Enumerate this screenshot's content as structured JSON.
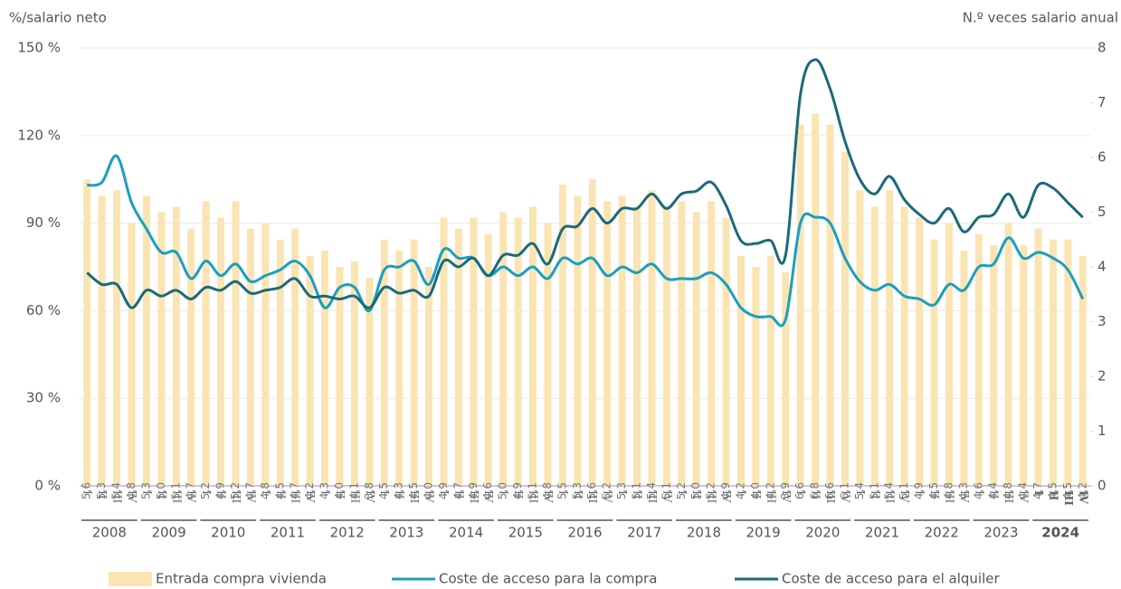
{
  "chart_data": {
    "type": "bar-line",
    "y_label": "%/salario neto",
    "y2_label": "N.º veces salario anual",
    "categories": [
      "I",
      "II",
      "III",
      "IV",
      "I",
      "II",
      "III",
      "IV",
      "I",
      "II",
      "III",
      "IV",
      "I",
      "II",
      "III",
      "IV",
      "I",
      "II",
      "III",
      "IV",
      "I",
      "II",
      "III",
      "IV",
      "I",
      "II",
      "III",
      "IV",
      "I",
      "II",
      "III",
      "IV",
      "I",
      "II",
      "III",
      "IV",
      "I",
      "II",
      "III",
      "IV",
      "I",
      "II",
      "III",
      "IV",
      "I",
      "II",
      "III",
      "IV",
      "I",
      "II",
      "III",
      "IV",
      "I",
      "II",
      "III",
      "IV",
      "I",
      "II",
      "III",
      "IV",
      "I",
      "II",
      "III",
      "IV",
      "I",
      "II",
      "III",
      "IV"
    ],
    "years": [
      "2008",
      "2009",
      "2010",
      "2011",
      "2012",
      "2013",
      "2014",
      "2015",
      "2016",
      "2017",
      "2018",
      "2019",
      "2020",
      "2021",
      "2022",
      "2023",
      "2024"
    ],
    "bold_year_index": 16,
    "ylim": [
      0,
      150
    ],
    "yticks": [
      {
        "value": 0,
        "label": "0 %"
      },
      {
        "value": 30,
        "label": "30 %"
      },
      {
        "value": 60,
        "label": "60 %"
      },
      {
        "value": 90,
        "label": "90 %"
      },
      {
        "value": 120,
        "label": "120 %"
      },
      {
        "value": 150,
        "label": "150 %"
      }
    ],
    "y2lim": [
      0,
      8
    ],
    "y2ticks": [
      0,
      1,
      2,
      3,
      4,
      5,
      6,
      7,
      8
    ],
    "grid": true,
    "series": [
      {
        "name": "Entrada compra vivienda",
        "type": "bar",
        "axis": "y2",
        "color": "#fbe4b4",
        "values": [
          5.6,
          5.3,
          5.4,
          4.8,
          5.3,
          5.0,
          5.1,
          4.7,
          5.2,
          4.9,
          5.2,
          4.7,
          4.8,
          4.5,
          4.7,
          4.2,
          4.3,
          4.0,
          4.1,
          3.8,
          4.5,
          4.3,
          4.5,
          4.0,
          4.9,
          4.7,
          4.9,
          4.6,
          5.0,
          4.9,
          5.1,
          4.8,
          5.5,
          5.3,
          5.6,
          5.2,
          5.3,
          5.1,
          5.4,
          5.1,
          5.2,
          5.0,
          5.2,
          4.9,
          4.2,
          4.0,
          4.2,
          3.9,
          6.6,
          6.8,
          6.6,
          6.1,
          5.4,
          5.1,
          5.4,
          5.1,
          4.9,
          4.5,
          4.8,
          4.3,
          4.6,
          4.4,
          4.8,
          4.4,
          4.7,
          4.5,
          4.5,
          4.2
        ],
        "value_labels": [
          "5,6",
          "5,3",
          "5,4",
          "4,8",
          "5,3",
          "5,0",
          "5,1",
          "4,7",
          "5,2",
          "4,9",
          "5,2",
          "4,7",
          "4,8",
          "4,5",
          "4,7",
          "4,2",
          "4,3",
          "4,0",
          "4,1",
          "3,8",
          "4,5",
          "4,3",
          "4,5",
          "4,0",
          "4,9",
          "4,7",
          "4,9",
          "4,6",
          "5,0",
          "4,9",
          "5,1",
          "4,8",
          "5,5",
          "5,3",
          "5,6",
          "5,2",
          "5,3",
          "5,1",
          "5,4",
          "5,1",
          "5,2",
          "5,0",
          "5,2",
          "4,9",
          "4,2",
          "4,0",
          "4,2",
          "3,9",
          "6,6",
          "6,8",
          "6,6",
          "6,1",
          "5,4",
          "5,1",
          "5,4",
          "5,1",
          "4,9",
          "4,5",
          "4,8",
          "4,3",
          "4,6",
          "4,4",
          "4,8",
          "4,4",
          "4,7",
          "4,5",
          "4,5",
          "4,2"
        ]
      },
      {
        "name": "Coste de acceso para la compra",
        "type": "line",
        "color": "#1a9fc0",
        "values": [
          103,
          104,
          113,
          97,
          88,
          80,
          80,
          71,
          77,
          72,
          76,
          70,
          72,
          74,
          77,
          72,
          61,
          68,
          68,
          60,
          74,
          75,
          77,
          69,
          81,
          78,
          78,
          72,
          75,
          72,
          75,
          71,
          78,
          76,
          78,
          72,
          75,
          73,
          76,
          71,
          71,
          71,
          73,
          69,
          61,
          58,
          58,
          57,
          90,
          92,
          90,
          78,
          70,
          67,
          69,
          65,
          64,
          62,
          69,
          67,
          75,
          76,
          85,
          78,
          80,
          78,
          74,
          64
        ]
      },
      {
        "name": "Coste de acceso para el alquiler",
        "type": "line",
        "color": "#1b6a7a",
        "values": [
          73,
          69,
          69,
          61,
          67,
          65,
          67,
          64,
          68,
          67,
          70,
          66,
          67,
          68,
          71,
          65,
          65,
          64,
          65,
          61,
          68,
          66,
          67,
          65,
          77,
          75,
          78,
          72,
          79,
          79,
          83,
          76,
          88,
          89,
          95,
          90,
          95,
          95,
          100,
          95,
          100,
          101,
          104,
          96,
          84,
          83,
          84,
          79,
          134,
          146,
          136,
          118,
          105,
          100,
          106,
          98,
          93,
          90,
          95,
          87,
          92,
          93,
          100,
          92,
          103,
          102,
          97,
          92
        ]
      }
    ]
  }
}
